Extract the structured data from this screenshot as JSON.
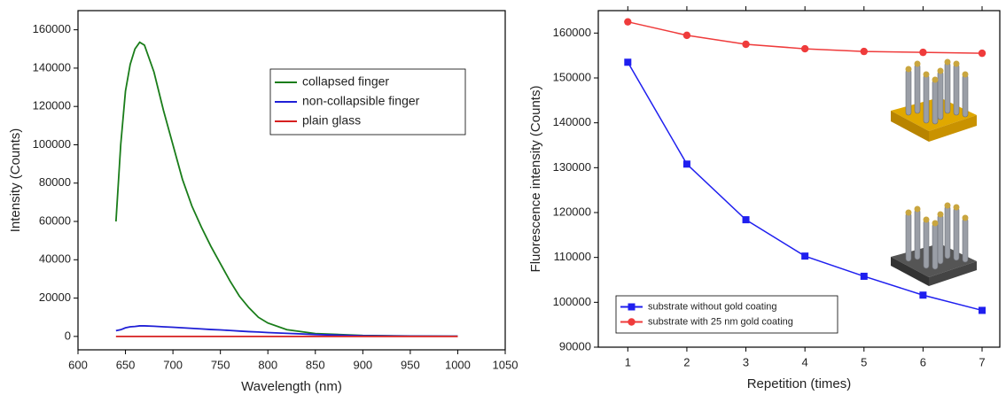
{
  "chart_data": [
    {
      "type": "line",
      "x_label": "Wavelength (nm)",
      "y_label": "Intensity (Counts)",
      "x": [
        640,
        645,
        650,
        655,
        660,
        665,
        670,
        680,
        690,
        700,
        710,
        720,
        730,
        740,
        750,
        760,
        770,
        780,
        790,
        800,
        820,
        850,
        900,
        950,
        1000
      ],
      "series": [
        {
          "name": "collapsed finger",
          "color": "#1a7d1a",
          "values": [
            60000,
            100000,
            128000,
            142000,
            150000,
            153500,
            152000,
            138000,
            118000,
            100000,
            82000,
            68000,
            57000,
            47000,
            38000,
            29000,
            21000,
            15000,
            10000,
            7000,
            3500,
            1500,
            500,
            200,
            100
          ]
        },
        {
          "name": "non-collapsible finger",
          "color": "#1f1fd6",
          "values": [
            3000,
            3500,
            4500,
            5000,
            5200,
            5500,
            5500,
            5300,
            5000,
            4800,
            4500,
            4200,
            3900,
            3600,
            3400,
            3100,
            2800,
            2500,
            2300,
            2000,
            1600,
            1000,
            300,
            150,
            100
          ]
        },
        {
          "name": "plain glass",
          "color": "#d62020",
          "values": [
            0,
            0,
            0,
            0,
            0,
            0,
            0,
            0,
            0,
            0,
            0,
            0,
            0,
            0,
            0,
            0,
            0,
            0,
            0,
            0,
            0,
            0,
            0,
            0,
            0
          ]
        }
      ],
      "xlim": [
        600,
        1050
      ],
      "xticks": [
        600,
        650,
        700,
        750,
        800,
        850,
        900,
        950,
        1000,
        1050
      ],
      "ylim": [
        -7000,
        170000
      ],
      "yticks": [
        0,
        20000,
        40000,
        60000,
        80000,
        100000,
        120000,
        140000,
        160000
      ],
      "grid": false,
      "legend": "upper right"
    },
    {
      "type": "line",
      "x_label": "Repetition (times)",
      "y_label": "Fluorescence intensity (Counts)",
      "x": [
        1,
        2,
        3,
        4,
        5,
        6,
        7
      ],
      "series": [
        {
          "name": "substrate without gold coating",
          "color": "#1f1fef",
          "marker": "square",
          "values": [
            153500,
            130800,
            118400,
            110300,
            105800,
            101600,
            98200
          ]
        },
        {
          "name": "substrate with 25 nm gold coating",
          "color": "#ef3b3b",
          "marker": "circle",
          "values": [
            162500,
            159500,
            157500,
            156500,
            155900,
            155700,
            155500
          ]
        }
      ],
      "xlim": [
        0.5,
        7.3
      ],
      "xticks": [
        1,
        2,
        3,
        4,
        5,
        6,
        7
      ],
      "ylim": [
        90000,
        165000
      ],
      "yticks": [
        90000,
        100000,
        110000,
        120000,
        130000,
        140000,
        150000,
        160000
      ],
      "grid": false,
      "legend": "lower left"
    }
  ]
}
